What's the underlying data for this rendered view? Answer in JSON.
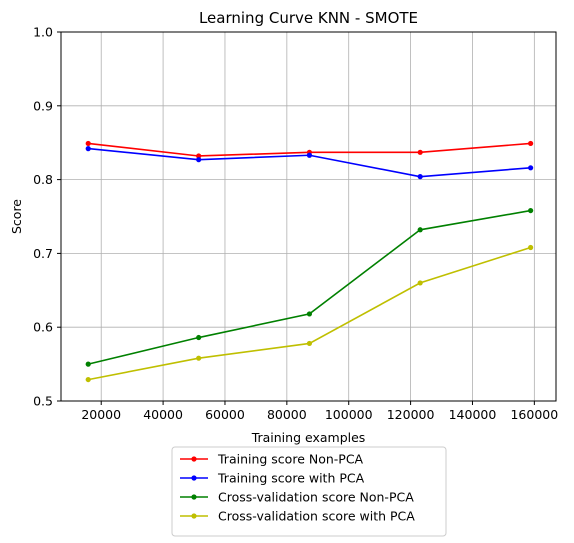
{
  "chart_data": {
    "type": "line",
    "title": "Learning Curve KNN - SMOTE",
    "xlabel": "Training examples",
    "ylabel": "Score",
    "xlim": [
      7000,
      167000
    ],
    "ylim": [
      0.5,
      1.0
    ],
    "xticks": [
      20000,
      40000,
      60000,
      80000,
      100000,
      120000,
      140000,
      160000
    ],
    "xtick_labels": [
      "20000",
      "40000",
      "60000",
      "80000",
      "100000",
      "120000",
      "140000",
      "160000"
    ],
    "yticks": [
      0.5,
      0.6,
      0.7,
      0.8,
      0.9,
      1.0
    ],
    "ytick_labels": [
      "0.5",
      "0.6",
      "0.7",
      "0.8",
      "0.9",
      "1.0"
    ],
    "grid": true,
    "legend_position": "below",
    "x": [
      15800,
      51500,
      87300,
      123100,
      158800
    ],
    "series": [
      {
        "name": "Training score Non-PCA",
        "color": "#ff0000",
        "values": [
          0.849,
          0.832,
          0.837,
          0.837,
          0.849
        ]
      },
      {
        "name": "Training score with PCA",
        "color": "#0000ff",
        "values": [
          0.842,
          0.827,
          0.833,
          0.804,
          0.816
        ]
      },
      {
        "name": "Cross-validation score Non-PCA",
        "color": "#008000",
        "values": [
          0.55,
          0.586,
          0.618,
          0.732,
          0.758
        ]
      },
      {
        "name": "Cross-validation score with PCA",
        "color": "#bfbf00",
        "values": [
          0.529,
          0.558,
          0.578,
          0.66,
          0.708
        ]
      }
    ]
  }
}
